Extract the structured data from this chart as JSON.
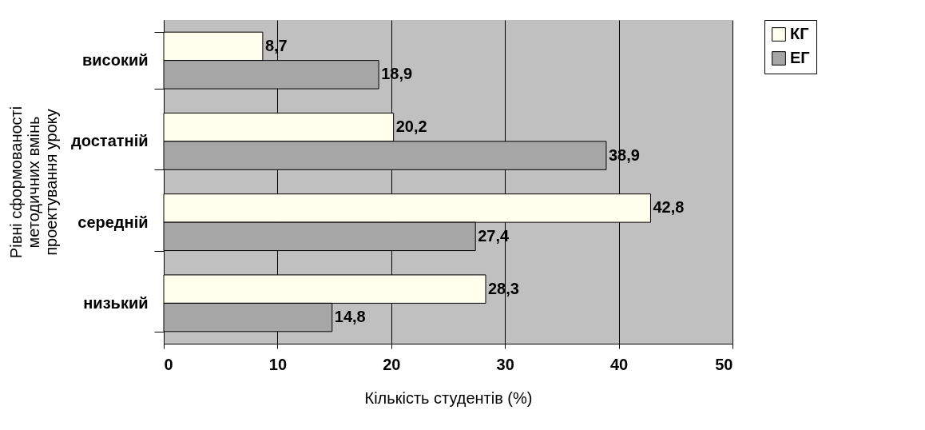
{
  "chart_data": {
    "type": "bar",
    "orientation": "horizontal",
    "xlabel": "Кількість студентів (%)",
    "ylabel": "Рівні сформованості методичних вмінь проектування уроку",
    "categories": [
      "високий",
      "достатній",
      "середній",
      "низький"
    ],
    "series": [
      {
        "name": "КГ",
        "color": "#ffffee",
        "values": [
          8.7,
          20.2,
          42.8,
          28.3
        ],
        "value_labels": [
          "8,7",
          "20,2",
          "42,8",
          "28,3"
        ]
      },
      {
        "name": "ЕГ",
        "color": "#a6a6a6",
        "values": [
          18.9,
          38.9,
          27.4,
          14.8
        ],
        "value_labels": [
          "18,9",
          "38,9",
          "27,4",
          "14,8"
        ]
      }
    ],
    "xlim": [
      0,
      50
    ],
    "xticks": [
      0,
      10,
      20,
      30,
      40,
      50
    ],
    "grid": "x",
    "legend": "top right"
  }
}
